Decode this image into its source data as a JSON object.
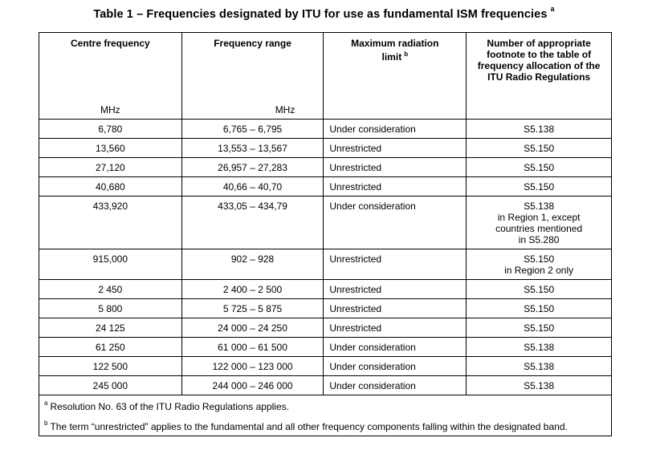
{
  "title": "Table 1 – Frequencies designated by ITU for use as fundamental ISM frequencies",
  "title_note": "a",
  "headers": {
    "centre_frequency": "Centre frequency",
    "centre_unit": "MHz",
    "frequency_range": "Frequency range",
    "range_unit": "MHz",
    "max_radiation_limit": "Maximum radiation limit",
    "max_radiation_note": "b",
    "footnote_number": "Number of appropriate footnote to the table of frequency allocation of the ITU Radio Regulations"
  },
  "rows": [
    {
      "centre": "6,780",
      "range": "6,765 – 6,795",
      "limit": "Under consideration",
      "footnote": "S5.138"
    },
    {
      "centre": "13,560",
      "range": "13,553 – 13,567",
      "limit": "Unrestricted",
      "footnote": "S5.150"
    },
    {
      "centre": "27,120",
      "range": "26,957 – 27,283",
      "limit": "Unrestricted",
      "footnote": "S5.150"
    },
    {
      "centre": "40,680",
      "range": "40,66 – 40,70",
      "limit": "Unrestricted",
      "footnote": "S5.150"
    },
    {
      "centre": "433,920",
      "range": "433,05 – 434,79",
      "limit": "Under consideration",
      "footnote": "S5.138\nin Region 1, except\ncountries mentioned\nin S5.280"
    },
    {
      "centre": "915,000",
      "range": "902 – 928",
      "limit": "Unrestricted",
      "footnote": "S5.150\nin Region 2 only"
    },
    {
      "centre": "2 450",
      "range": "2 400 – 2 500",
      "limit": "Unrestricted",
      "footnote": "S5.150"
    },
    {
      "centre": "5 800",
      "range": "5 725 – 5 875",
      "limit": "Unrestricted",
      "footnote": "S5.150"
    },
    {
      "centre": "24 125",
      "range": "24 000 – 24 250",
      "limit": "Unrestricted",
      "footnote": "S5.150"
    },
    {
      "centre": "61 250",
      "range": "61 000 – 61 500",
      "limit": "Under consideration",
      "footnote": "S5.138"
    },
    {
      "centre": "122 500",
      "range": "122 000 – 123 000",
      "limit": "Under consideration",
      "footnote": "S5.138"
    },
    {
      "centre": "245 000",
      "range": "244 000 – 246 000",
      "limit": "Under consideration",
      "footnote": "S5.138"
    }
  ],
  "notes": [
    {
      "mark": "a",
      "text": "Resolution No. 63 of the ITU Radio Regulations applies."
    },
    {
      "mark": "b",
      "text": "The term “unrestricted” applies to the fundamental and all other frequency components falling within the designated band."
    }
  ]
}
